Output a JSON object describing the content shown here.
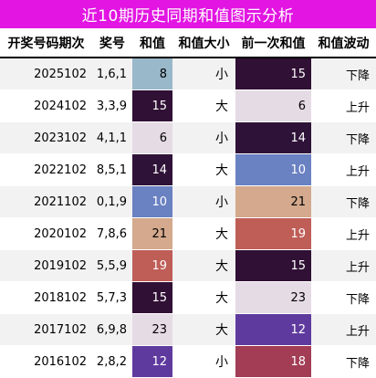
{
  "title": "近10期历史同期和值图示分析",
  "headers": [
    "开奖号码期次",
    "奖号",
    "和值",
    "和值大小",
    "前一次和值",
    "和值波动"
  ],
  "rows": [
    {
      "period": "2025102",
      "numbers": "1,6,1",
      "sum": "8",
      "size": "小",
      "prev_sum": "15",
      "trend": "下降",
      "sum_bg": "#99b8c9",
      "sum_fg": "#000000",
      "prev_bg": "#301034",
      "prev_fg": "#ffffff"
    },
    {
      "period": "2024102",
      "numbers": "3,3,9",
      "sum": "15",
      "size": "大",
      "prev_sum": "6",
      "trend": "上升",
      "sum_bg": "#301034",
      "sum_fg": "#ffffff",
      "prev_bg": "#e5dbe5",
      "prev_fg": "#000000"
    },
    {
      "period": "2023102",
      "numbers": "4,1,1",
      "sum": "6",
      "size": "小",
      "prev_sum": "14",
      "trend": "下降",
      "sum_bg": "#e5dbe5",
      "sum_fg": "#000000",
      "prev_bg": "#2f1238",
      "prev_fg": "#ffffff"
    },
    {
      "period": "2022102",
      "numbers": "8,5,1",
      "sum": "14",
      "size": "大",
      "prev_sum": "10",
      "trend": "上升",
      "sum_bg": "#2f1238",
      "sum_fg": "#ffffff",
      "prev_bg": "#6a81c2",
      "prev_fg": "#ffffff"
    },
    {
      "period": "2021102",
      "numbers": "0,1,9",
      "sum": "10",
      "size": "小",
      "prev_sum": "21",
      "trend": "下降",
      "sum_bg": "#6a81c2",
      "sum_fg": "#ffffff",
      "prev_bg": "#d4a98d",
      "prev_fg": "#000000"
    },
    {
      "period": "2020102",
      "numbers": "7,8,6",
      "sum": "21",
      "size": "大",
      "prev_sum": "19",
      "trend": "上升",
      "sum_bg": "#d4a98d",
      "sum_fg": "#000000",
      "prev_bg": "#bf5d57",
      "prev_fg": "#ffffff"
    },
    {
      "period": "2019102",
      "numbers": "5,5,9",
      "sum": "19",
      "size": "大",
      "prev_sum": "15",
      "trend": "上升",
      "sum_bg": "#bf5d57",
      "sum_fg": "#ffffff",
      "prev_bg": "#301034",
      "prev_fg": "#ffffff"
    },
    {
      "period": "2018102",
      "numbers": "5,7,3",
      "sum": "15",
      "size": "大",
      "prev_sum": "23",
      "trend": "下降",
      "sum_bg": "#301034",
      "sum_fg": "#ffffff",
      "prev_bg": "#e5dbe5",
      "prev_fg": "#000000"
    },
    {
      "period": "2017102",
      "numbers": "6,9,8",
      "sum": "23",
      "size": "大",
      "prev_sum": "12",
      "trend": "上升",
      "sum_bg": "#e5dbe5",
      "sum_fg": "#000000",
      "prev_bg": "#5f3a9e",
      "prev_fg": "#ffffff"
    },
    {
      "period": "2016102",
      "numbers": "2,8,2",
      "sum": "12",
      "size": "小",
      "prev_sum": "18",
      "trend": "下降",
      "sum_bg": "#5f3a9e",
      "sum_fg": "#ffffff",
      "prev_bg": "#a33c55",
      "prev_fg": "#ffffff"
    }
  ],
  "colors": {
    "title_bg": "#e215e2",
    "title_fg": "#ffffff",
    "row_stripe": "#f2f2f2"
  }
}
